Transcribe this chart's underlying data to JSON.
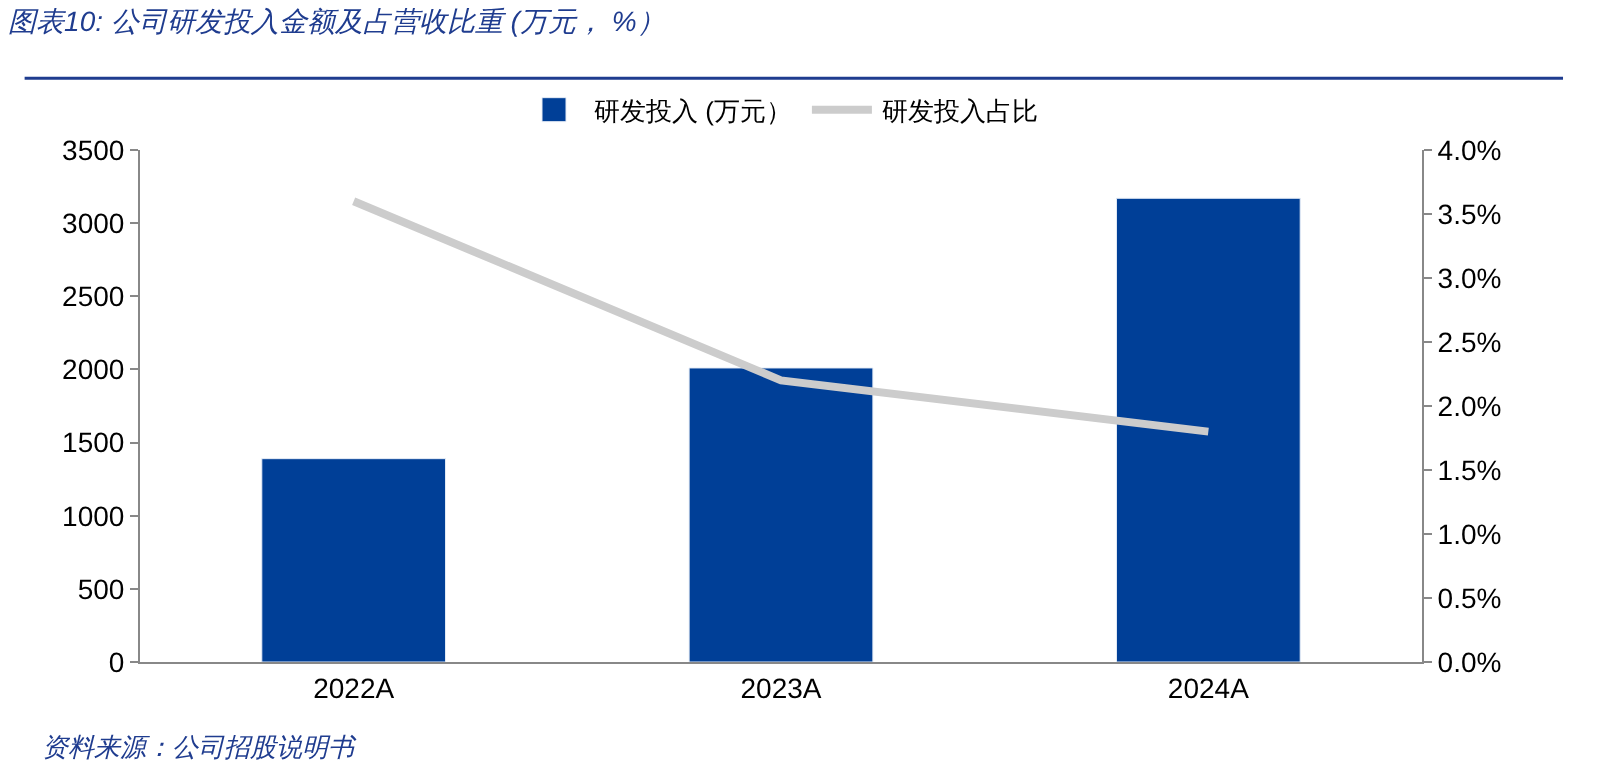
{
  "chart_data": {
    "type": "bar",
    "title": "图表10: 公司研发投入金额及占营收比重 (万元， %）",
    "categories": [
      "2022A",
      "2023A",
      "2024A"
    ],
    "series": [
      {
        "name": "研发投入 (万元）",
        "color": "#003f97",
        "values": [
          1390,
          2010,
          3170
        ]
      },
      {
        "name": "研发投入占比",
        "type": "line",
        "axis": "y2",
        "color": "#cccccc",
        "values": [
          3.6,
          2.2,
          1.8
        ]
      }
    ],
    "ylim": [
      0,
      3500
    ],
    "yticks": [
      0,
      500,
      1000,
      1500,
      2000,
      2500,
      3000,
      3500
    ],
    "y2lim": [
      0,
      4
    ],
    "y2ticks": [
      {
        "value": 0,
        "label": "0.0%"
      },
      {
        "value": 0.5,
        "label": "0.5%"
      },
      {
        "value": 1,
        "label": "1.0%"
      },
      {
        "value": 1.5,
        "label": "1.5%"
      },
      {
        "value": 2,
        "label": "2.0%"
      },
      {
        "value": 2.5,
        "label": "2.5%"
      },
      {
        "value": 3,
        "label": "3.0%"
      },
      {
        "value": 3.5,
        "label": "3.5%"
      },
      {
        "value": 4,
        "label": "4.0%"
      }
    ],
    "legend": "top",
    "marker": "none",
    "annotations": [
      "资料来源：公司招股说明书"
    ]
  }
}
